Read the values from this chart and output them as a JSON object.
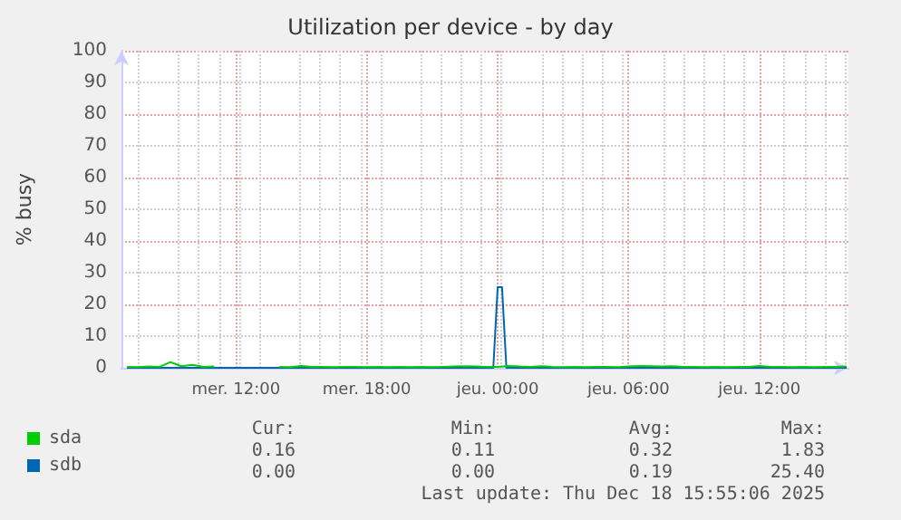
{
  "chart_data": {
    "type": "line",
    "title": "Utilization per device - by day",
    "ylabel": "% busy",
    "xlim": [
      "2025-12-17T06:45",
      "2025-12-18T16:05"
    ],
    "xticks": [
      {
        "value": "2025-12-17T12:00",
        "label": "mer. 12:00"
      },
      {
        "value": "2025-12-17T18:00",
        "label": "mer. 18:00"
      },
      {
        "value": "2025-12-18T00:00",
        "label": "jeu. 00:00"
      },
      {
        "value": "2025-12-18T06:00",
        "label": "jeu. 06:00"
      },
      {
        "value": "2025-12-18T12:00",
        "label": "jeu. 12:00"
      }
    ],
    "ylim": [
      0,
      100
    ],
    "yticks": [
      0,
      10,
      20,
      30,
      40,
      50,
      60,
      70,
      80,
      90,
      100
    ],
    "grid": true,
    "legend": "bottom left",
    "marker": "none",
    "line_style": "solid",
    "series": [
      {
        "name": "sda",
        "color": "#00cc00",
        "x": [
          "2025-12-17T07:00",
          "2025-12-17T07:30",
          "2025-12-17T08:00",
          "2025-12-17T08:30",
          "2025-12-17T09:00",
          "2025-12-17T09:30",
          "2025-12-17T10:00",
          "2025-12-17T10:30",
          "2025-12-17T11:00",
          "2025-12-17T11:30",
          "2025-12-17T12:00",
          "2025-12-17T12:30",
          "2025-12-17T13:00",
          "2025-12-17T13:30",
          "2025-12-17T14:00",
          "2025-12-17T14:30",
          "2025-12-17T15:00",
          "2025-12-17T15:30",
          "2025-12-17T16:00",
          "2025-12-17T16:30",
          "2025-12-17T17:00",
          "2025-12-17T17:30",
          "2025-12-17T18:00",
          "2025-12-17T18:30",
          "2025-12-17T19:00",
          "2025-12-17T19:30",
          "2025-12-17T20:00",
          "2025-12-17T20:30",
          "2025-12-17T21:00",
          "2025-12-17T21:30",
          "2025-12-17T22:00",
          "2025-12-17T22:30",
          "2025-12-17T23:00",
          "2025-12-17T23:30",
          "2025-12-18T00:00",
          "2025-12-18T00:30",
          "2025-12-18T01:00",
          "2025-12-18T01:30",
          "2025-12-18T02:00",
          "2025-12-18T02:30",
          "2025-12-18T03:00",
          "2025-12-18T03:30",
          "2025-12-18T04:00",
          "2025-12-18T04:30",
          "2025-12-18T05:00",
          "2025-12-18T05:30",
          "2025-12-18T06:00",
          "2025-12-18T06:30",
          "2025-12-18T07:00",
          "2025-12-18T07:30",
          "2025-12-18T08:00",
          "2025-12-18T08:30",
          "2025-12-18T09:00",
          "2025-12-18T09:30",
          "2025-12-18T10:00",
          "2025-12-18T10:30",
          "2025-12-18T11:00",
          "2025-12-18T11:30",
          "2025-12-18T12:00",
          "2025-12-18T12:30",
          "2025-12-18T13:00",
          "2025-12-18T13:30",
          "2025-12-18T14:00",
          "2025-12-18T14:30",
          "2025-12-18T15:00",
          "2025-12-18T15:30",
          "2025-12-18T16:00"
        ],
        "values": [
          0.3,
          0.2,
          0.4,
          0.3,
          1.8,
          0.5,
          0.9,
          0.3,
          0.4,
          null,
          null,
          null,
          null,
          null,
          0.3,
          0.2,
          0.6,
          0.3,
          0.3,
          0.2,
          0.3,
          0.3,
          0.2,
          0.3,
          0.2,
          0.3,
          0.2,
          0.3,
          0.2,
          0.3,
          0.4,
          0.5,
          0.4,
          0.3,
          0.3,
          0.6,
          0.4,
          0.3,
          0.5,
          0.3,
          0.2,
          0.3,
          0.2,
          0.3,
          0.3,
          0.2,
          0.4,
          0.6,
          0.5,
          0.4,
          0.5,
          0.3,
          0.3,
          0.2,
          0.3,
          0.2,
          0.3,
          0.3,
          0.6,
          0.3,
          0.3,
          0.2,
          0.3,
          0.2,
          0.3,
          0.3,
          0.4
        ]
      },
      {
        "name": "sdb",
        "color": "#0066b3",
        "x": [
          "2025-12-17T07:00",
          "2025-12-17T23:48",
          "2025-12-18T00:00",
          "2025-12-18T00:12",
          "2025-12-18T00:24",
          "2025-12-18T16:00"
        ],
        "values": [
          0,
          0,
          25.4,
          25.4,
          0,
          0
        ]
      }
    ],
    "annotations": [
      "Cur:",
      "Min:",
      "Avg:",
      "Max:",
      "0.16",
      "0.11",
      "0.32",
      "1.83",
      "0.00",
      "0.00",
      "0.19",
      "25.40",
      "Last update: Thu Dec 18 15:55:06 2025"
    ]
  }
}
